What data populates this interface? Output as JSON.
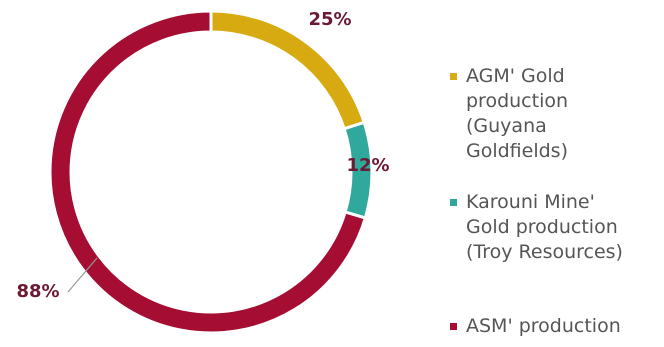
{
  "chart_data": {
    "type": "pie",
    "variant": "donut",
    "title": "",
    "slices": [
      {
        "label": "AGM' Gold\nproduction\n(Guyana\nGoldfields)",
        "value": 25,
        "value_label": "25%",
        "color": "#d8aa12"
      },
      {
        "label": "Karouni Mine'\nGold production\n(Troy Resources)",
        "value": 12,
        "value_label": "12%",
        "color": "#30a89c"
      },
      {
        "label": "ASM' production",
        "value": 88,
        "value_label": "88%",
        "color": "#a50d33"
      }
    ],
    "label_color": "#6b1a33",
    "legend_position": "right"
  }
}
